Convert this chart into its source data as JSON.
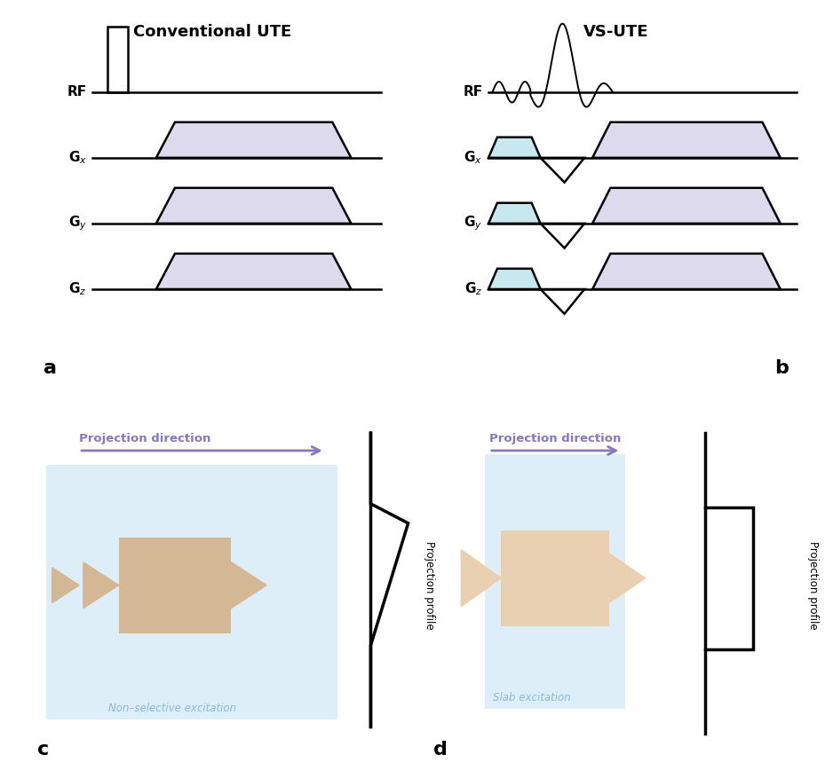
{
  "title_left": "Conventional UTE",
  "title_right": "VS-UTE",
  "label_a": "a",
  "label_b": "b",
  "label_c": "c",
  "label_d": "d",
  "trap_lavender": "#dddaee",
  "trap_blue": "#c8e8f0",
  "bg_color": "#ffffff",
  "proj_dir_color": "#8878bb",
  "box_bg_left": "#deeef8",
  "box_bg_right": "#deeef8",
  "obj_color_left": "#d4b896",
  "obj_color_right": "#e8d0b0",
  "black": "#000000",
  "non_sel_label": "Non–selective excitation",
  "slab_label": "Slab excitation",
  "proj_dir_label": "Projection direction",
  "proj_profile_label": "Projection profile",
  "label_color_blue": "#88bbd8"
}
